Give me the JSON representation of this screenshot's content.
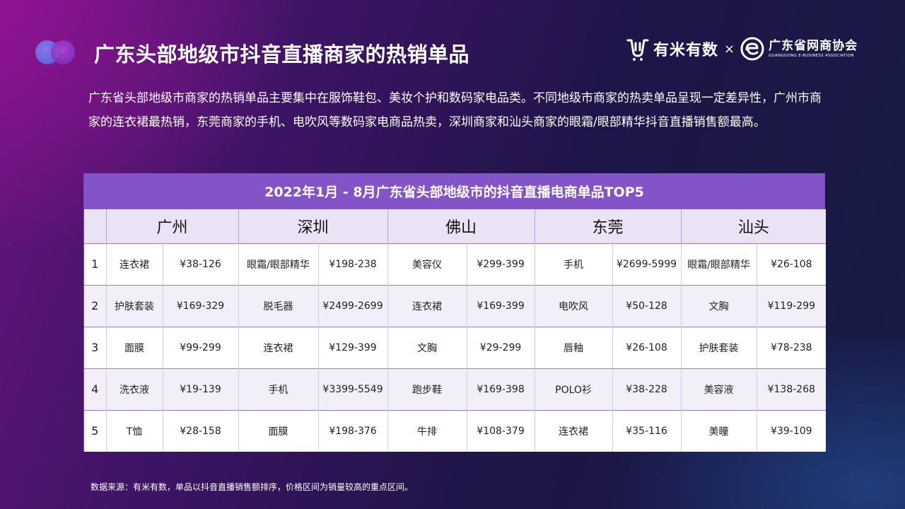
{
  "header": {
    "title": "广东头部地级市抖音直播商家的热销单品",
    "logo_youmi": "有米有数",
    "logo_times": "×",
    "logo_assoc_cn": "广东省网商协会",
    "logo_assoc_en": "GUANGDONG E-BUSINESS ASSOCIATION"
  },
  "intro": "广东省头部地级市商家的热销单品主要集中在服饰鞋包、美妆个护和数码家电品类。不同地级市商家的热卖单品呈现一定差异性，广州市商家的连衣裙最热销，东莞商家的手机、电吹风等数码家电商品热卖，深圳商家和汕头商家的眼霜/眼部精华抖音直播销售额最高。",
  "table": {
    "title": "2022年1月 - 8月广东省头部地级市的抖音直播电商单品TOP5",
    "cities": [
      "广州",
      "深圳",
      "佛山",
      "东莞",
      "汕头"
    ],
    "rows": [
      {
        "rank": "1",
        "cells": [
          {
            "item": "连衣裙",
            "price": "¥38-126"
          },
          {
            "item": "眼霜/眼部精华",
            "price": "¥198-238"
          },
          {
            "item": "美容仪",
            "price": "¥299-399"
          },
          {
            "item": "手机",
            "price": "¥2699-5999"
          },
          {
            "item": "眼霜/眼部精华",
            "price": "¥26-108"
          }
        ]
      },
      {
        "rank": "2",
        "cells": [
          {
            "item": "护肤套装",
            "price": "¥169-329"
          },
          {
            "item": "脱毛器",
            "price": "¥2499-2699"
          },
          {
            "item": "连衣裙",
            "price": "¥169-399"
          },
          {
            "item": "电吹风",
            "price": "¥50-128"
          },
          {
            "item": "文胸",
            "price": "¥119-299"
          }
        ]
      },
      {
        "rank": "3",
        "cells": [
          {
            "item": "面膜",
            "price": "¥99-299"
          },
          {
            "item": "连衣裙",
            "price": "¥129-399"
          },
          {
            "item": "文胸",
            "price": "¥29-299"
          },
          {
            "item": "唇釉",
            "price": "¥26-108"
          },
          {
            "item": "护肤套装",
            "price": "¥78-238"
          }
        ]
      },
      {
        "rank": "4",
        "cells": [
          {
            "item": "洗衣液",
            "price": "¥19-139"
          },
          {
            "item": "手机",
            "price": "¥3399-5549"
          },
          {
            "item": "跑步鞋",
            "price": "¥169-398"
          },
          {
            "item": "POLO衫",
            "price": "¥38-228"
          },
          {
            "item": "美容液",
            "price": "¥138-268"
          }
        ]
      },
      {
        "rank": "5",
        "cells": [
          {
            "item": "T恤",
            "price": "¥28-158"
          },
          {
            "item": "面膜",
            "price": "¥198-376"
          },
          {
            "item": "牛排",
            "price": "¥108-379"
          },
          {
            "item": "连衣裙",
            "price": "¥35-116"
          },
          {
            "item": "美瞳",
            "price": "¥39-109"
          }
        ]
      }
    ]
  },
  "footnote": "数据来源：有米有数，单品以抖音直播销售额排序，价格区间为销量较高的重点区间。"
}
